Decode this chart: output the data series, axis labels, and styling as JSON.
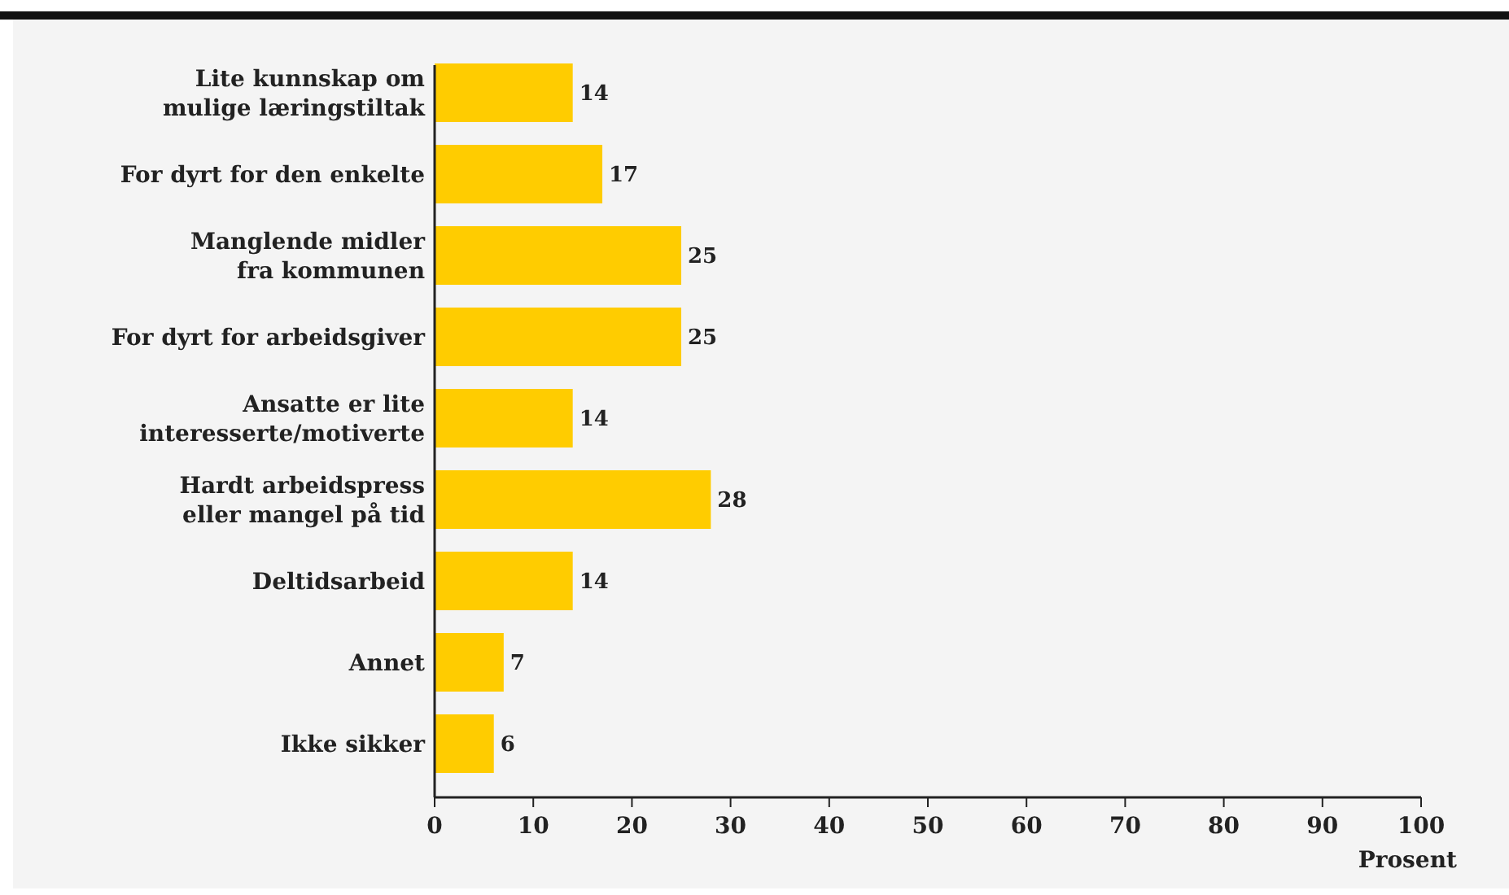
{
  "chart_data": {
    "type": "bar",
    "orientation": "horizontal",
    "xlabel": "Prosent",
    "categories": [
      "Lite kunnskap om mulige læringstiltak",
      "For dyrt for den enkelte",
      "Manglende midler fra kommunen",
      "For dyrt for arbeidsgiver",
      "Ansatte er lite interesserte/motiverte",
      "Hardt arbeidspress eller mangel på tid",
      "Deltidsarbeid",
      "Annet",
      "Ikke sikker"
    ],
    "values": [
      14,
      17,
      25,
      25,
      14,
      28,
      14,
      7,
      6
    ],
    "color": "#ffcc00",
    "xlim": [
      0,
      100
    ],
    "xticks": [
      0,
      10,
      20,
      30,
      40,
      50,
      60,
      70,
      80,
      90,
      100
    ],
    "data_labels": true
  }
}
